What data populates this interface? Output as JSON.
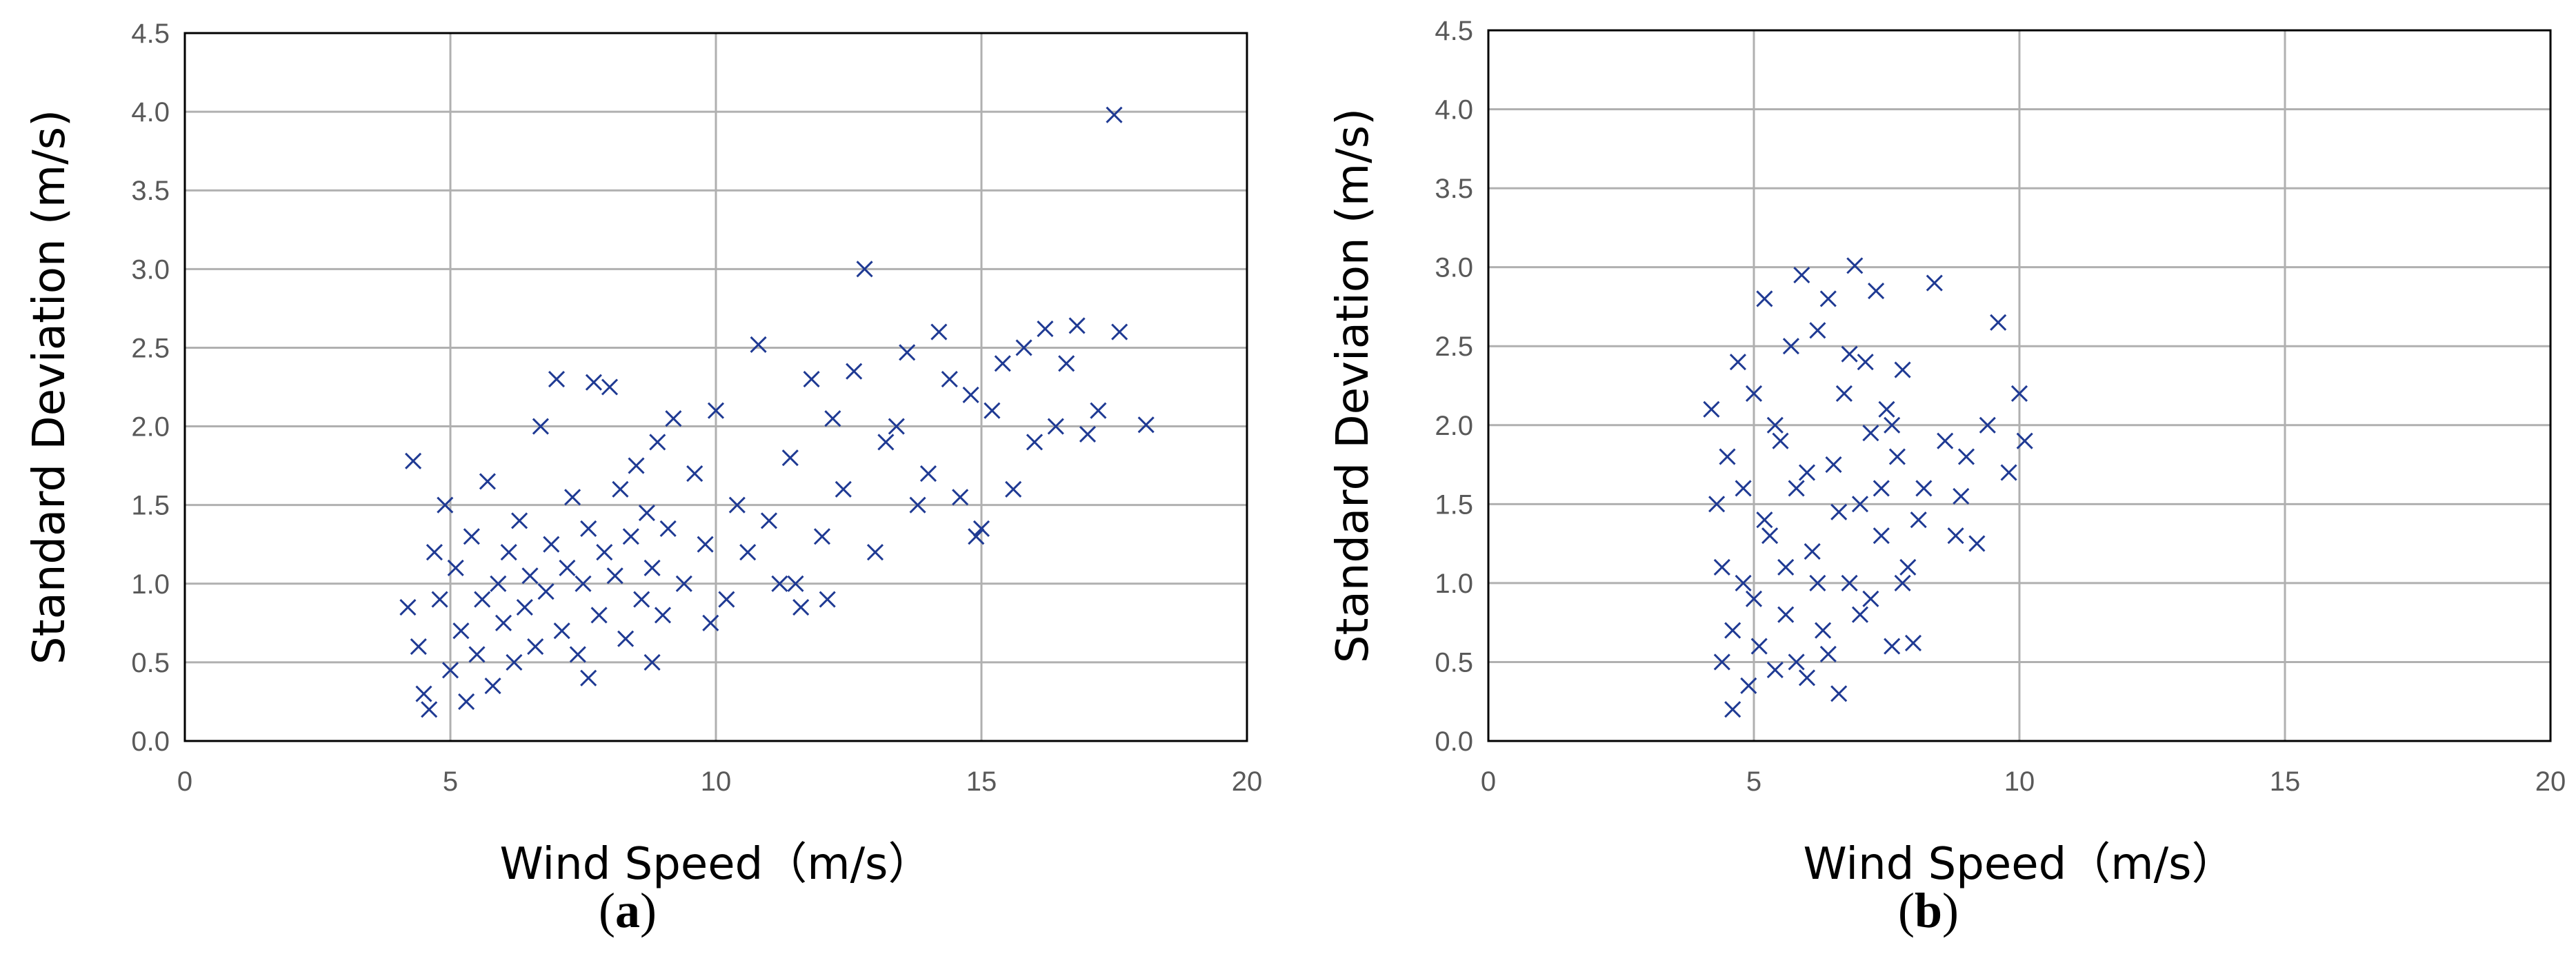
{
  "colors": {
    "marker": "#1f3a93",
    "grid": "#b0b0b0",
    "frame": "#000000"
  },
  "chart_data": [
    {
      "type": "scatter",
      "panel_label": "(a)",
      "xlabel": "Wind Speed（m/s）",
      "ylabel": "Standard Deviation (m/s)",
      "xlim": [
        0,
        20
      ],
      "ylim": [
        0,
        4.5
      ],
      "xticks": [
        "0",
        "5",
        "10",
        "15",
        "20"
      ],
      "yticks": [
        "0.0",
        "0.5",
        "1.0",
        "1.5",
        "2.0",
        "2.5",
        "3.0",
        "3.5",
        "4.0",
        "4.5"
      ],
      "grid": true,
      "marker": "x",
      "points_description_cluster": {
        "x_range": [
          4,
          18
        ],
        "note": "dense cloud; sample points listed"
      },
      "points": [
        [
          4.3,
          1.78
        ],
        [
          4.2,
          0.85
        ],
        [
          4.4,
          0.6
        ],
        [
          4.5,
          0.3
        ],
        [
          4.6,
          0.2
        ],
        [
          4.7,
          1.2
        ],
        [
          4.8,
          0.9
        ],
        [
          4.9,
          1.5
        ],
        [
          5.0,
          0.45
        ],
        [
          5.1,
          1.1
        ],
        [
          5.2,
          0.7
        ],
        [
          5.3,
          0.25
        ],
        [
          5.4,
          1.3
        ],
        [
          5.5,
          0.55
        ],
        [
          5.6,
          0.9
        ],
        [
          5.7,
          1.65
        ],
        [
          5.8,
          0.35
        ],
        [
          5.9,
          1.0
        ],
        [
          6.0,
          0.75
        ],
        [
          6.1,
          1.2
        ],
        [
          6.2,
          0.5
        ],
        [
          6.3,
          1.4
        ],
        [
          6.4,
          0.85
        ],
        [
          6.5,
          1.05
        ],
        [
          6.6,
          0.6
        ],
        [
          6.7,
          2.0
        ],
        [
          6.8,
          0.95
        ],
        [
          6.9,
          1.25
        ],
        [
          7.0,
          2.3
        ],
        [
          7.1,
          0.7
        ],
        [
          7.2,
          1.1
        ],
        [
          7.3,
          1.55
        ],
        [
          7.4,
          0.55
        ],
        [
          7.5,
          1.0
        ],
        [
          7.6,
          1.35
        ],
        [
          7.7,
          2.28
        ],
        [
          7.8,
          0.8
        ],
        [
          7.9,
          1.2
        ],
        [
          8.0,
          2.25
        ],
        [
          8.1,
          1.05
        ],
        [
          8.2,
          1.6
        ],
        [
          8.3,
          0.65
        ],
        [
          8.4,
          1.3
        ],
        [
          8.5,
          1.75
        ],
        [
          8.6,
          0.9
        ],
        [
          8.7,
          1.45
        ],
        [
          8.8,
          1.1
        ],
        [
          8.9,
          1.9
        ],
        [
          9.0,
          0.8
        ],
        [
          9.1,
          1.35
        ],
        [
          9.2,
          2.05
        ],
        [
          9.4,
          1.0
        ],
        [
          9.6,
          1.7
        ],
        [
          9.8,
          1.25
        ],
        [
          10.0,
          2.1
        ],
        [
          10.2,
          0.9
        ],
        [
          10.4,
          1.5
        ],
        [
          10.6,
          1.2
        ],
        [
          10.8,
          2.52
        ],
        [
          11.0,
          1.4
        ],
        [
          11.2,
          1.0
        ],
        [
          11.4,
          1.8
        ],
        [
          11.6,
          0.85
        ],
        [
          11.8,
          2.3
        ],
        [
          12.0,
          1.3
        ],
        [
          12.2,
          2.05
        ],
        [
          12.4,
          1.6
        ],
        [
          12.6,
          2.35
        ],
        [
          12.8,
          3.0
        ],
        [
          13.0,
          1.2
        ],
        [
          13.2,
          1.9
        ],
        [
          13.4,
          2.0
        ],
        [
          13.6,
          2.47
        ],
        [
          13.8,
          1.5
        ],
        [
          14.0,
          1.7
        ],
        [
          14.2,
          2.6
        ],
        [
          14.4,
          2.3
        ],
        [
          14.6,
          1.55
        ],
        [
          14.8,
          2.2
        ],
        [
          15.0,
          1.35
        ],
        [
          15.2,
          2.1
        ],
        [
          15.4,
          2.4
        ],
        [
          15.6,
          1.6
        ],
        [
          15.8,
          2.5
        ],
        [
          16.0,
          1.9
        ],
        [
          16.2,
          2.62
        ],
        [
          16.4,
          2.0
        ],
        [
          16.6,
          2.4
        ],
        [
          16.8,
          2.64
        ],
        [
          17.0,
          1.95
        ],
        [
          17.2,
          2.1
        ],
        [
          17.5,
          3.98
        ],
        [
          17.6,
          2.6
        ],
        [
          18.1,
          2.01
        ],
        [
          14.9,
          1.3
        ],
        [
          12.1,
          0.9
        ],
        [
          11.5,
          1.0
        ],
        [
          9.9,
          0.75
        ],
        [
          8.8,
          0.5
        ],
        [
          7.6,
          0.4
        ]
      ]
    },
    {
      "type": "scatter",
      "panel_label": "(b)",
      "xlabel": "Wind Speed（m/s）",
      "ylabel": "Standard Deviation (m/s)",
      "xlim": [
        0,
        20
      ],
      "ylim": [
        0,
        4.5
      ],
      "xticks": [
        "0",
        "5",
        "10",
        "15",
        "20"
      ],
      "yticks": [
        "0.0",
        "0.5",
        "1.0",
        "1.5",
        "2.0",
        "2.5",
        "3.0",
        "3.5",
        "4.0",
        "4.5"
      ],
      "grid": true,
      "marker": "x",
      "points": [
        [
          4.2,
          2.1
        ],
        [
          4.3,
          1.5
        ],
        [
          4.4,
          0.5
        ],
        [
          4.5,
          1.8
        ],
        [
          4.6,
          0.2
        ],
        [
          4.7,
          2.4
        ],
        [
          4.8,
          1.0
        ],
        [
          4.9,
          0.35
        ],
        [
          5.0,
          2.2
        ],
        [
          5.1,
          0.6
        ],
        [
          5.2,
          2.8
        ],
        [
          5.3,
          1.3
        ],
        [
          5.4,
          0.45
        ],
        [
          5.5,
          1.9
        ],
        [
          5.6,
          0.8
        ],
        [
          5.7,
          2.5
        ],
        [
          5.8,
          1.6
        ],
        [
          5.9,
          2.95
        ],
        [
          6.0,
          0.4
        ],
        [
          6.1,
          1.2
        ],
        [
          6.2,
          2.6
        ],
        [
          6.3,
          0.7
        ],
        [
          6.4,
          2.8
        ],
        [
          6.5,
          1.75
        ],
        [
          6.6,
          0.3
        ],
        [
          6.7,
          2.2
        ],
        [
          6.8,
          1.0
        ],
        [
          6.9,
          3.01
        ],
        [
          7.0,
          1.5
        ],
        [
          7.1,
          2.4
        ],
        [
          7.2,
          0.9
        ],
        [
          7.3,
          2.85
        ],
        [
          7.4,
          1.3
        ],
        [
          7.5,
          2.1
        ],
        [
          7.6,
          0.6
        ],
        [
          7.7,
          1.8
        ],
        [
          7.8,
          2.35
        ],
        [
          7.9,
          1.1
        ],
        [
          8.0,
          0.62
        ],
        [
          8.2,
          1.6
        ],
        [
          8.4,
          2.9
        ],
        [
          8.6,
          1.9
        ],
        [
          8.8,
          1.3
        ],
        [
          9.0,
          1.8
        ],
        [
          9.2,
          1.25
        ],
        [
          9.4,
          2.0
        ],
        [
          9.6,
          2.65
        ],
        [
          9.8,
          1.7
        ],
        [
          10.0,
          2.2
        ],
        [
          10.1,
          1.9
        ],
        [
          4.4,
          1.1
        ],
        [
          4.6,
          0.7
        ],
        [
          4.8,
          1.6
        ],
        [
          5.0,
          0.9
        ],
        [
          5.2,
          1.4
        ],
        [
          5.4,
          2.0
        ],
        [
          5.6,
          1.1
        ],
        [
          5.8,
          0.5
        ],
        [
          6.0,
          1.7
        ],
        [
          6.2,
          1.0
        ],
        [
          6.4,
          0.55
        ],
        [
          6.6,
          1.45
        ],
        [
          6.8,
          2.45
        ],
        [
          7.0,
          0.8
        ],
        [
          7.2,
          1.95
        ],
        [
          7.4,
          1.6
        ],
        [
          7.6,
          2.0
        ],
        [
          7.8,
          1.0
        ],
        [
          8.1,
          1.4
        ],
        [
          8.9,
          1.55
        ]
      ]
    }
  ],
  "panels": [
    {
      "caption_letter": "a"
    },
    {
      "caption_letter": "b"
    }
  ]
}
